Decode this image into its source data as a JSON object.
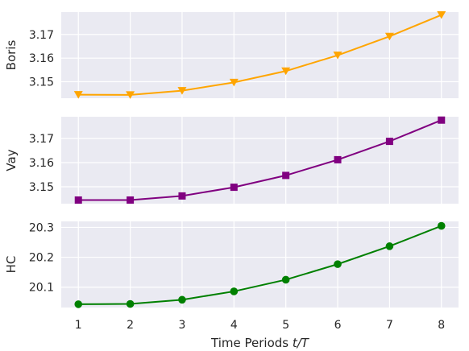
{
  "chart_data": [
    {
      "type": "line",
      "ylabel": "Boris",
      "x": [
        1,
        2,
        3,
        4,
        5,
        6,
        7,
        8
      ],
      "series": [
        {
          "values": [
            3.1445,
            3.1444,
            3.1462,
            3.1497,
            3.1545,
            3.1612,
            3.1692,
            3.1783
          ],
          "color": "#FFA500",
          "marker": "triangle-down"
        }
      ],
      "ylim": [
        3.143,
        3.1795
      ],
      "yticks": [
        "3.15",
        "3.16",
        "3.17"
      ],
      "ytick_values": [
        3.15,
        3.16,
        3.17
      ]
    },
    {
      "type": "line",
      "ylabel": "Vay",
      "x": [
        1,
        2,
        3,
        4,
        5,
        6,
        7,
        8
      ],
      "series": [
        {
          "values": [
            3.1445,
            3.1445,
            3.1462,
            3.1498,
            3.1547,
            3.1612,
            3.1688,
            3.1776
          ],
          "color": "#800080",
          "marker": "square"
        }
      ],
      "ylim": [
        3.143,
        3.179
      ],
      "yticks": [
        "3.15",
        "3.16",
        "3.17"
      ],
      "ytick_values": [
        3.15,
        3.16,
        3.17
      ]
    },
    {
      "type": "line",
      "ylabel": "HC",
      "xlabel_plain": "Time Periods ",
      "xlabel_var": "t/T",
      "x": [
        1,
        2,
        3,
        4,
        5,
        6,
        7,
        8
      ],
      "xticks": [
        "1",
        "2",
        "3",
        "4",
        "5",
        "6",
        "7",
        "8"
      ],
      "series": [
        {
          "values": [
            20.043,
            20.044,
            20.058,
            20.086,
            20.125,
            20.177,
            20.237,
            20.305
          ],
          "color": "#008000",
          "marker": "circle"
        }
      ],
      "ylim": [
        20.032,
        20.32
      ],
      "yticks": [
        "20.1",
        "20.2",
        "20.3"
      ],
      "ytick_values": [
        20.1,
        20.2,
        20.3
      ]
    }
  ],
  "style": {
    "plot_background": "#EAEAF2",
    "grid_color": "#FFFFFF",
    "grid": true
  }
}
